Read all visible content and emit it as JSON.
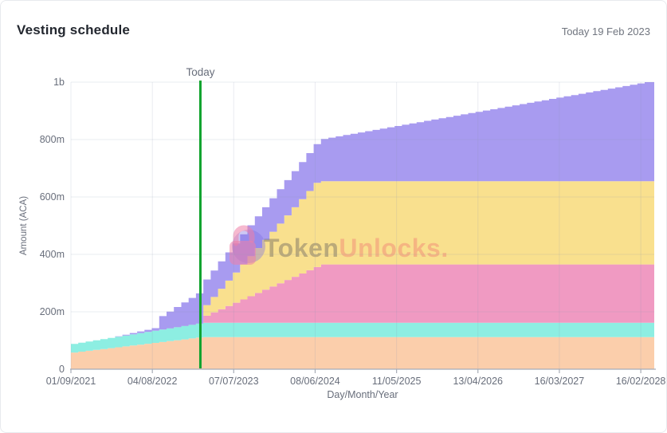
{
  "header": {
    "title": "Vesting schedule",
    "date_label": "Today 19 Feb 2023"
  },
  "watermark": {
    "prefix": "Token",
    "suffix": "Unlocks."
  },
  "colors": {
    "today_line": "#10a32e",
    "grid": "rgba(140,150,175,0.18)",
    "axis_line": "#a7acb6",
    "text_muted": "#686e7b",
    "title_text": "#23272f",
    "watermark_text_gray": "rgba(110,104,96,0.45)",
    "watermark_text_pink": "rgba(242,145,120,0.55)",
    "watermark_lock_pink": "rgba(238,128,168,0.55)",
    "watermark_circle_purple": "rgba(124,110,225,0.38)"
  },
  "chart_data": {
    "type": "area",
    "stacked": true,
    "step_interval_months": 1,
    "x_unit": "months since 01/09/2021",
    "t_max": 79.3,
    "y_max": 1000,
    "ylabel": "Amount (ACA)",
    "xlabel": "Day/Month/Year",
    "y_ticks": [
      {
        "v": 0,
        "label": "0"
      },
      {
        "v": 200,
        "label": "200m"
      },
      {
        "v": 400,
        "label": "400m"
      },
      {
        "v": 600,
        "label": "600m"
      },
      {
        "v": 800,
        "label": "800m"
      },
      {
        "v": 1000,
        "label": "1b"
      }
    ],
    "x_ticks": [
      {
        "t": 0.0,
        "label": "01/09/2021"
      },
      {
        "t": 11.07,
        "label": "04/08/2022"
      },
      {
        "t": 22.13,
        "label": "07/07/2023"
      },
      {
        "t": 33.2,
        "label": "08/06/2024"
      },
      {
        "t": 44.27,
        "label": "11/05/2025"
      },
      {
        "t": 55.33,
        "label": "13/04/2026"
      },
      {
        "t": 66.4,
        "label": "16/03/2027"
      },
      {
        "t": 77.47,
        "label": "16/02/2028"
      }
    ],
    "annotations": {
      "today_label": "Today",
      "today_t": 17.6,
      "today_date": "19 Feb 2023"
    },
    "series": [
      {
        "name": "band-1-peach",
        "color": "#fbceab",
        "cumulative_top_keyframes": [
          [
            0,
            58
          ],
          [
            17.6,
            112
          ],
          [
            79.3,
            112
          ]
        ]
      },
      {
        "name": "band-2-teal",
        "color": "#8deee2",
        "cumulative_top_keyframes": [
          [
            0,
            88
          ],
          [
            17.6,
            162
          ],
          [
            79.3,
            162
          ]
        ]
      },
      {
        "name": "band-3-pink",
        "color": "#f09ac2",
        "cumulative_top_keyframes": [
          [
            0,
            88
          ],
          [
            17.5,
            161
          ],
          [
            17.6,
            182
          ],
          [
            33.8,
            365
          ],
          [
            79.3,
            365
          ]
        ]
      },
      {
        "name": "band-4-yellow",
        "color": "#f9e08e",
        "cumulative_top_keyframes": [
          [
            0,
            88
          ],
          [
            17.5,
            161
          ],
          [
            17.6,
            212
          ],
          [
            33.2,
            655
          ],
          [
            79.3,
            655
          ]
        ]
      },
      {
        "name": "band-5-purple",
        "color": "#a89bf0",
        "cumulative_top_keyframes": [
          [
            0,
            88
          ],
          [
            5,
            109
          ],
          [
            11,
            143
          ],
          [
            12,
            185
          ],
          [
            17.5,
            272
          ],
          [
            17.6,
            300
          ],
          [
            33.5,
            800
          ],
          [
            78,
            1000
          ],
          [
            79.3,
            1000
          ]
        ]
      }
    ]
  }
}
